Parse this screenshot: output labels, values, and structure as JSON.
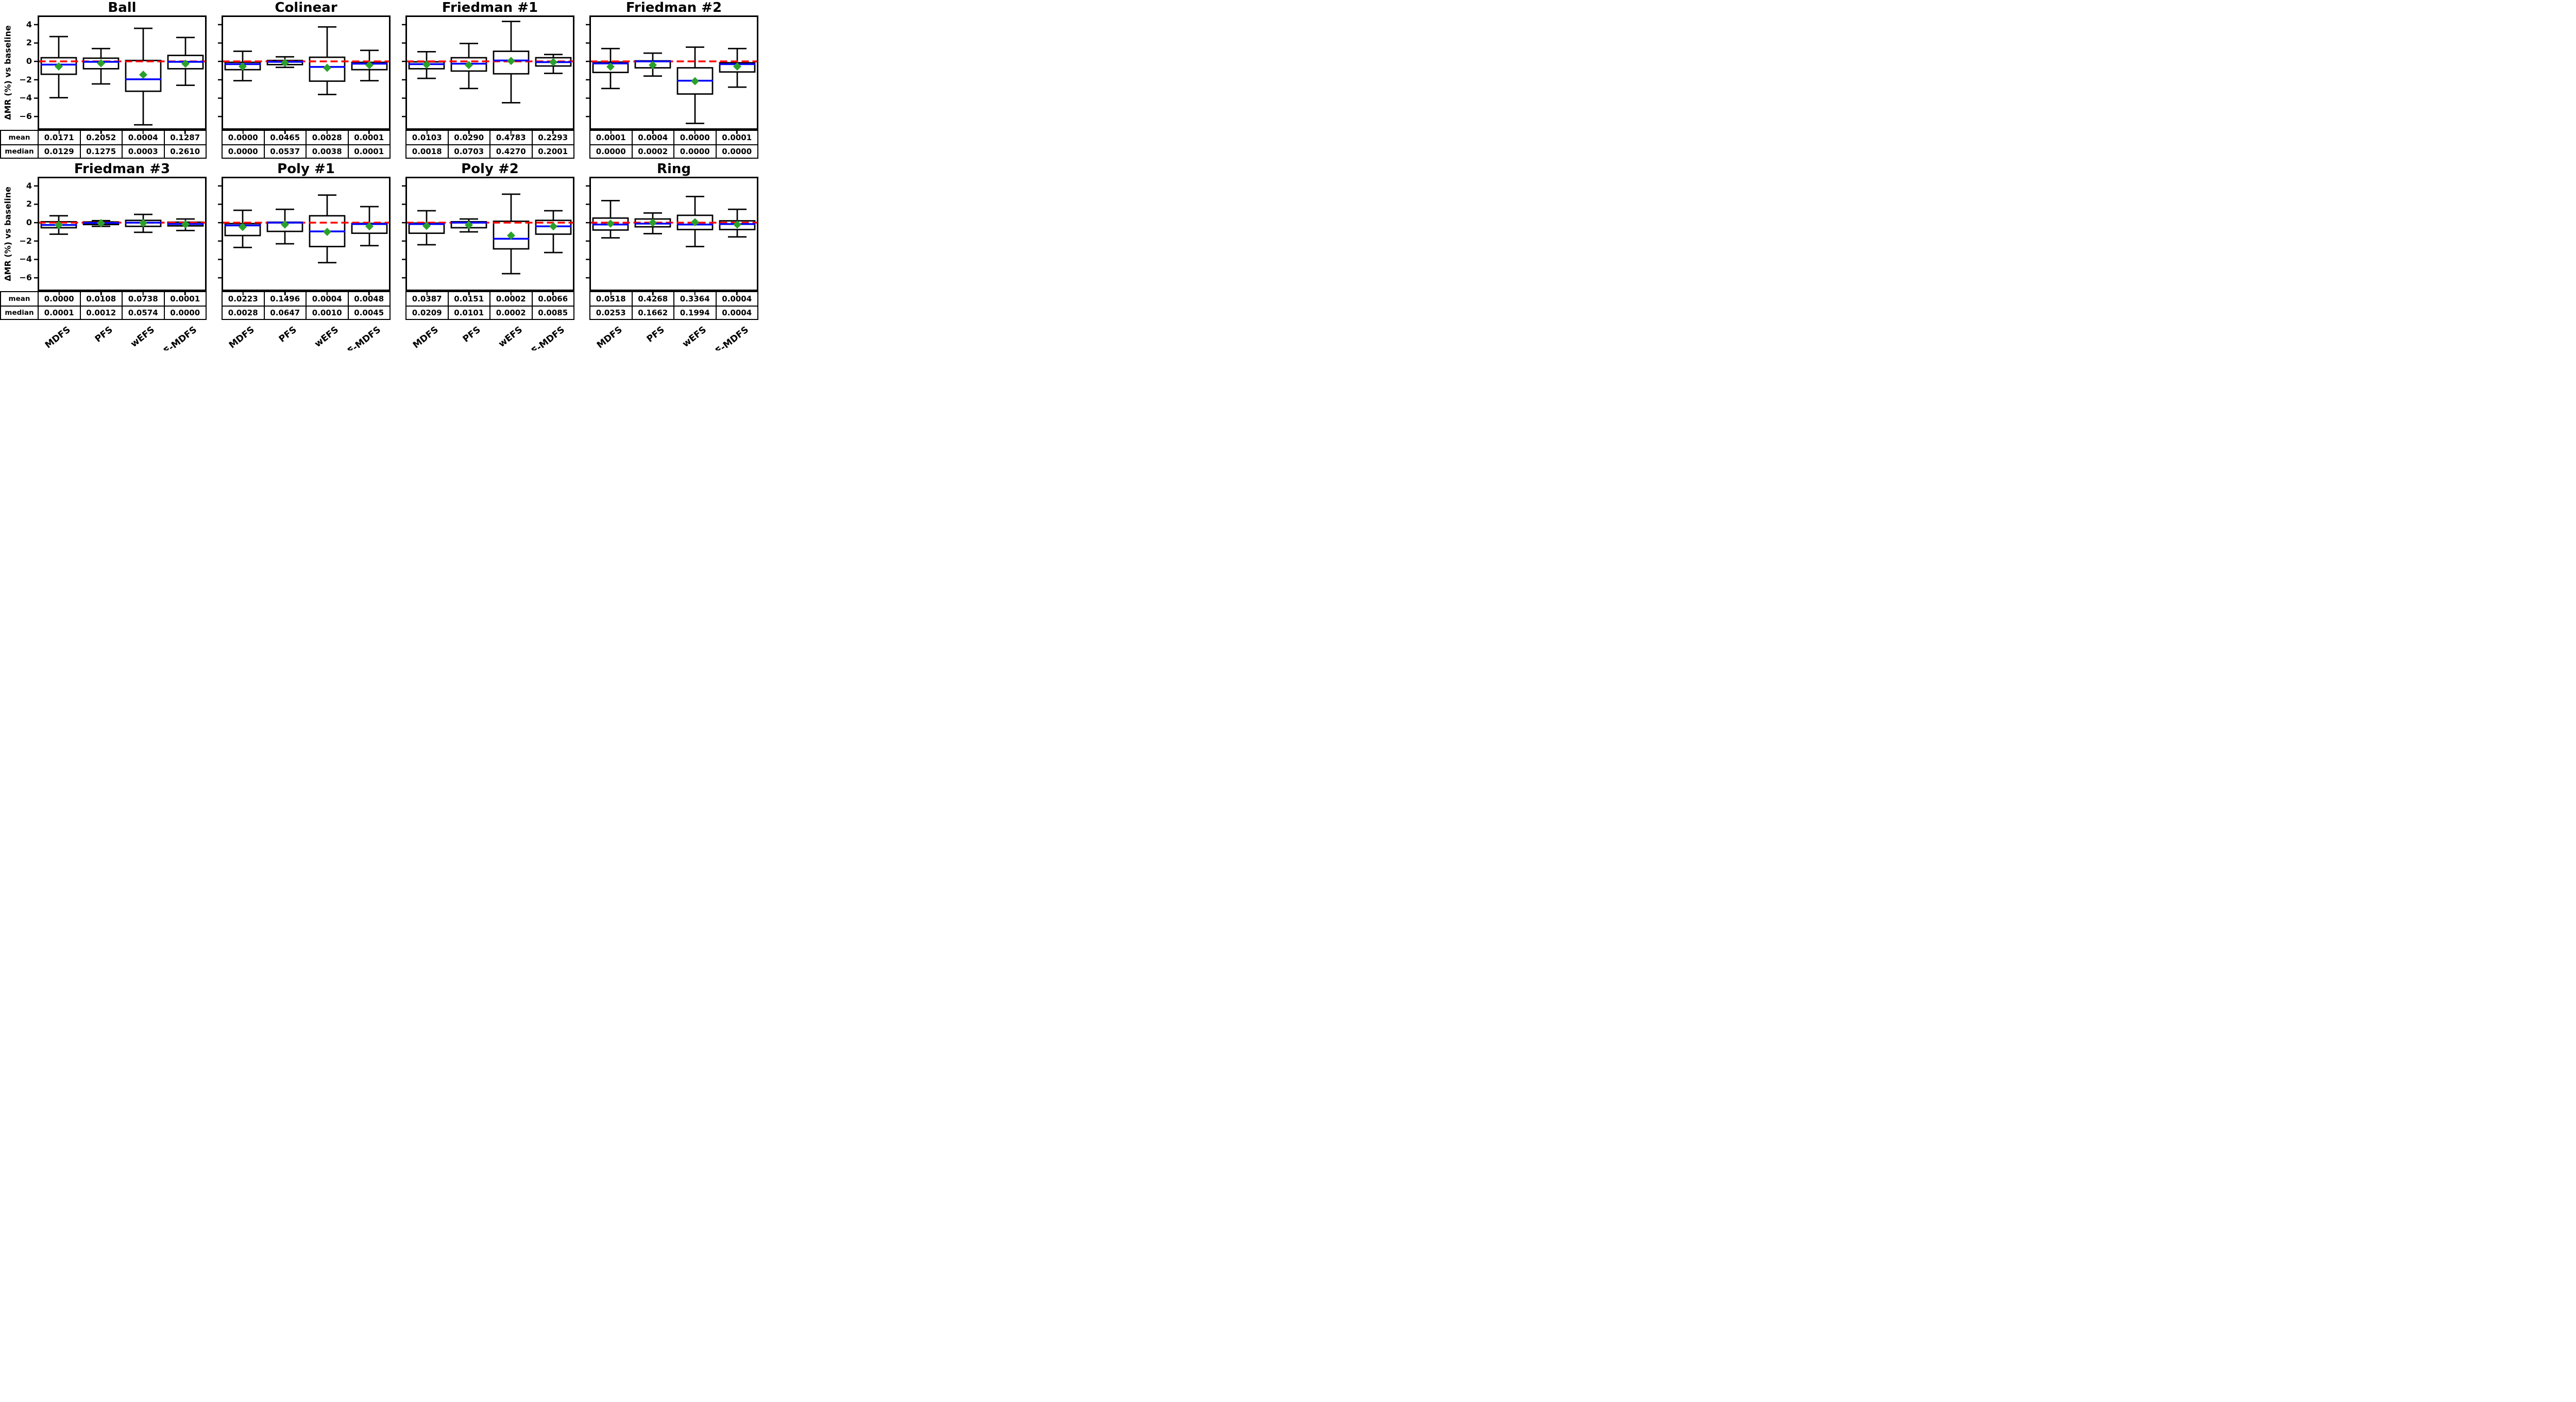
{
  "figure": {
    "ylabel": "ΔMR (%) vs baseline",
    "ytick_labels": [
      "4",
      "2",
      "0",
      "−2",
      "−4",
      "−6"
    ],
    "ytick_values": [
      4,
      2,
      0,
      -2,
      -4,
      -6
    ],
    "ylim": [
      -7.45,
      5.0
    ],
    "baseline_value": 0,
    "methods": [
      "MDFS",
      "PFS",
      "wEFS",
      "RF-MDFS"
    ],
    "row_labels": [
      "mean",
      "median"
    ],
    "colors": {
      "baseline_line": "#ff0000",
      "median_line": "#0000ff",
      "mean_marker": "#2ca02c",
      "box_line": "#000000",
      "background": "#ffffff"
    }
  },
  "chart_data": [
    {
      "type": "box",
      "title": "Ball",
      "categories": [
        "MDFS",
        "PFS",
        "wEFS",
        "RF-MDFS"
      ],
      "boxes": [
        {
          "whislo": -3.95,
          "q1": -1.4,
          "med": -0.35,
          "q3": 0.4,
          "whishi": 2.7,
          "mean": -0.55
        },
        {
          "whislo": -2.45,
          "q1": -0.8,
          "med": -0.05,
          "q3": 0.35,
          "whishi": 1.4,
          "mean": -0.2
        },
        {
          "whislo": -6.9,
          "q1": -3.25,
          "med": -1.95,
          "q3": 0.1,
          "whishi": 3.6,
          "mean": -1.45
        },
        {
          "whislo": -2.6,
          "q1": -0.8,
          "med": -0.05,
          "q3": 0.65,
          "whishi": 2.6,
          "mean": -0.25
        }
      ],
      "table": {
        "mean": [
          "0.0171",
          "0.2052",
          "0.0004",
          "0.1287"
        ],
        "median": [
          "0.0129",
          "0.1275",
          "0.0003",
          "0.2610"
        ]
      }
    },
    {
      "type": "box",
      "title": "Colinear",
      "categories": [
        "MDFS",
        "PFS",
        "wEFS",
        "RF-MDFS"
      ],
      "boxes": [
        {
          "whislo": -2.1,
          "q1": -0.9,
          "med": -0.3,
          "q3": -0.1,
          "whishi": 1.1,
          "mean": -0.55
        },
        {
          "whislo": -0.65,
          "q1": -0.35,
          "med": -0.05,
          "q3": 0.1,
          "whishi": 0.5,
          "mean": -0.15
        },
        {
          "whislo": -3.6,
          "q1": -2.15,
          "med": -0.6,
          "q3": 0.45,
          "whishi": 3.75,
          "mean": -0.7
        },
        {
          "whislo": -2.1,
          "q1": -0.9,
          "med": -0.25,
          "q3": -0.1,
          "whishi": 1.2,
          "mean": -0.4
        }
      ],
      "table": {
        "mean": [
          "0.0000",
          "0.0465",
          "0.0028",
          "0.0001"
        ],
        "median": [
          "0.0000",
          "0.0537",
          "0.0038",
          "0.0001"
        ]
      }
    },
    {
      "type": "box",
      "title": "Friedman #1",
      "categories": [
        "MDFS",
        "PFS",
        "wEFS",
        "RF-MDFS"
      ],
      "boxes": [
        {
          "whislo": -1.85,
          "q1": -0.8,
          "med": -0.3,
          "q3": -0.05,
          "whishi": 1.05,
          "mean": -0.35
        },
        {
          "whislo": -2.95,
          "q1": -1.05,
          "med": -0.25,
          "q3": 0.4,
          "whishi": 1.95,
          "mean": -0.4
        },
        {
          "whislo": -4.5,
          "q1": -1.35,
          "med": 0.1,
          "q3": 1.1,
          "whishi": 4.35,
          "mean": 0.05
        },
        {
          "whislo": -1.3,
          "q1": -0.5,
          "med": -0.08,
          "q3": 0.4,
          "whishi": 0.75,
          "mean": -0.08
        }
      ],
      "table": {
        "mean": [
          "0.0103",
          "0.0290",
          "0.4783",
          "0.2293"
        ],
        "median": [
          "0.0018",
          "0.0703",
          "0.4270",
          "0.2001"
        ]
      }
    },
    {
      "type": "box",
      "title": "Friedman #2",
      "categories": [
        "MDFS",
        "PFS",
        "wEFS",
        "RF-MDFS"
      ],
      "boxes": [
        {
          "whislo": -2.95,
          "q1": -1.2,
          "med": -0.22,
          "q3": -0.08,
          "whishi": 1.4,
          "mean": -0.58
        },
        {
          "whislo": -1.6,
          "q1": -0.7,
          "med": 0.0,
          "q3": 0.06,
          "whishi": 0.9,
          "mean": -0.4
        },
        {
          "whislo": -6.75,
          "q1": -3.55,
          "med": -2.1,
          "q3": -0.7,
          "whishi": 1.55,
          "mean": -2.15
        },
        {
          "whislo": -2.8,
          "q1": -1.15,
          "med": -0.3,
          "q3": -0.15,
          "whishi": 1.4,
          "mean": -0.55
        }
      ],
      "table": {
        "mean": [
          "0.0001",
          "0.0004",
          "0.0000",
          "0.0001"
        ],
        "median": [
          "0.0000",
          "0.0002",
          "0.0000",
          "0.0000"
        ]
      }
    },
    {
      "type": "box",
      "title": "Friedman #3",
      "categories": [
        "MDFS",
        "PFS",
        "wEFS",
        "RF-MDFS"
      ],
      "boxes": [
        {
          "whislo": -1.25,
          "q1": -0.55,
          "med": -0.25,
          "q3": 0.1,
          "whishi": 0.75,
          "mean": -0.25
        },
        {
          "whislo": -0.4,
          "q1": -0.2,
          "med": -0.03,
          "q3": 0.08,
          "whishi": 0.22,
          "mean": -0.05
        },
        {
          "whislo": -1.05,
          "q1": -0.4,
          "med": 0.0,
          "q3": 0.25,
          "whishi": 0.9,
          "mean": -0.05
        },
        {
          "whislo": -0.85,
          "q1": -0.35,
          "med": -0.15,
          "q3": 0.05,
          "whishi": 0.4,
          "mean": -0.18
        }
      ],
      "table": {
        "mean": [
          "0.0000",
          "0.0108",
          "0.0738",
          "0.0001"
        ],
        "median": [
          "0.0001",
          "0.0012",
          "0.0574",
          "0.0000"
        ]
      }
    },
    {
      "type": "box",
      "title": "Poly #1",
      "categories": [
        "MDFS",
        "PFS",
        "wEFS",
        "RF-MDFS"
      ],
      "boxes": [
        {
          "whislo": -2.7,
          "q1": -1.4,
          "med": -0.3,
          "q3": -0.1,
          "whishi": 1.35,
          "mean": -0.47
        },
        {
          "whislo": -2.3,
          "q1": -0.95,
          "med": 0.0,
          "q3": 0.05,
          "whishi": 1.45,
          "mean": -0.2
        },
        {
          "whislo": -4.35,
          "q1": -2.6,
          "med": -0.95,
          "q3": 0.75,
          "whishi": 3.0,
          "mean": -1.0
        },
        {
          "whislo": -2.5,
          "q1": -1.15,
          "med": -0.15,
          "q3": -0.08,
          "whishi": 1.75,
          "mean": -0.4
        }
      ],
      "table": {
        "mean": [
          "0.0223",
          "0.1496",
          "0.0004",
          "0.0048"
        ],
        "median": [
          "0.0028",
          "0.0647",
          "0.0010",
          "0.0045"
        ]
      }
    },
    {
      "type": "box",
      "title": "Poly #2",
      "categories": [
        "MDFS",
        "PFS",
        "wEFS",
        "RF-MDFS"
      ],
      "boxes": [
        {
          "whislo": -2.4,
          "q1": -1.15,
          "med": -0.15,
          "q3": -0.05,
          "whishi": 1.3,
          "mean": -0.35
        },
        {
          "whislo": -1.0,
          "q1": -0.55,
          "med": 0.0,
          "q3": 0.1,
          "whishi": 0.4,
          "mean": -0.25
        },
        {
          "whislo": -5.55,
          "q1": -2.85,
          "med": -1.75,
          "q3": 0.15,
          "whishi": 3.1,
          "mean": -1.4
        },
        {
          "whislo": -3.25,
          "q1": -1.25,
          "med": -0.4,
          "q3": 0.25,
          "whishi": 1.3,
          "mean": -0.4
        }
      ],
      "table": {
        "mean": [
          "0.0387",
          "0.0151",
          "0.0002",
          "0.0066"
        ],
        "median": [
          "0.0209",
          "0.0101",
          "0.0002",
          "0.0085"
        ]
      }
    },
    {
      "type": "box",
      "title": "Ring",
      "categories": [
        "MDFS",
        "PFS",
        "wEFS",
        "RF-MDFS"
      ],
      "boxes": [
        {
          "whislo": -1.65,
          "q1": -0.8,
          "med": -0.2,
          "q3": 0.5,
          "whishi": 2.4,
          "mean": -0.1
        },
        {
          "whislo": -1.2,
          "q1": -0.45,
          "med": -0.1,
          "q3": 0.4,
          "whishi": 1.05,
          "mean": 0.0
        },
        {
          "whislo": -2.6,
          "q1": -0.75,
          "med": -0.2,
          "q3": 0.8,
          "whishi": 2.85,
          "mean": 0.05
        },
        {
          "whislo": -1.55,
          "q1": -0.75,
          "med": -0.15,
          "q3": 0.2,
          "whishi": 1.45,
          "mean": -0.2
        }
      ],
      "table": {
        "mean": [
          "0.0518",
          "0.4268",
          "0.3364",
          "0.0004"
        ],
        "median": [
          "0.0253",
          "0.1662",
          "0.1994",
          "0.0004"
        ]
      }
    }
  ]
}
